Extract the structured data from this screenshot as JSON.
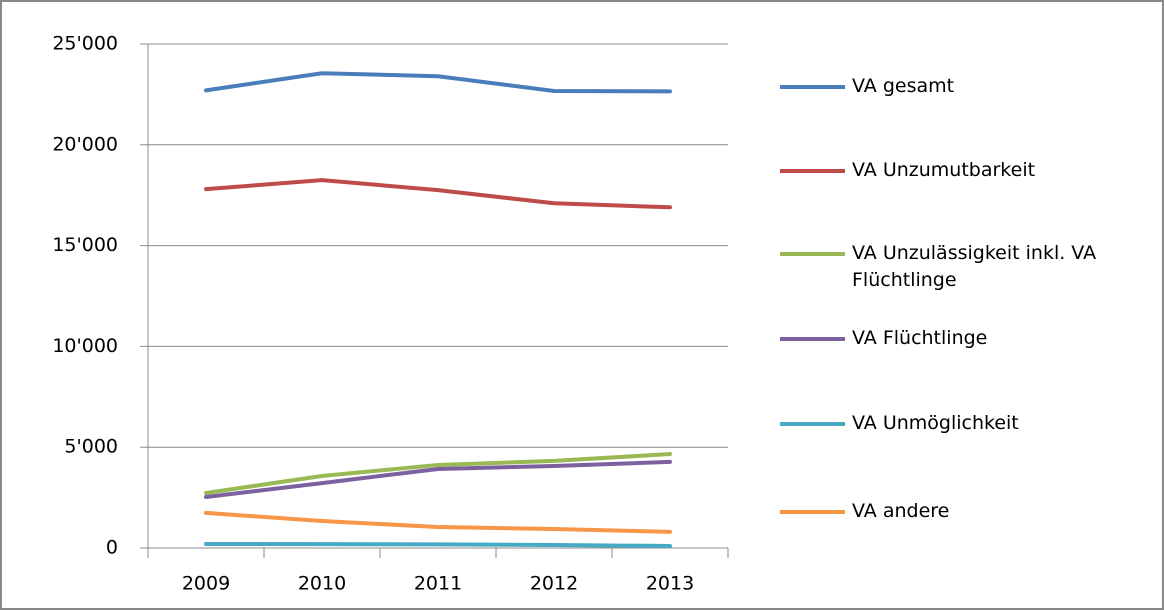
{
  "chart_data": {
    "type": "line",
    "categories": [
      "2009",
      "2010",
      "2011",
      "2012",
      "2013"
    ],
    "series": [
      {
        "name": "VA gesamt",
        "color": "#4a7ebb",
        "values": [
          22700,
          23550,
          23400,
          22670,
          22650
        ]
      },
      {
        "name": "VA Unzumutbarkeit",
        "color": "#be4b48",
        "values": [
          17800,
          18250,
          17750,
          17100,
          16900
        ]
      },
      {
        "name": "VA Unzulässigkeit inkl. VA Flüchtlinge",
        "color": "#98b954",
        "values": [
          2730,
          3570,
          4120,
          4320,
          4660
        ]
      },
      {
        "name": "VA Flüchtlinge",
        "color": "#7d60a0",
        "values": [
          2530,
          3220,
          3920,
          4070,
          4270
        ]
      },
      {
        "name": "VA Unmöglichkeit",
        "color": "#46aac5",
        "values": [
          200,
          190,
          180,
          150,
          100
        ]
      },
      {
        "name": "VA andere",
        "color": "#f79646",
        "values": [
          1740,
          1340,
          1040,
          940,
          800
        ]
      }
    ],
    "ylim": [
      0,
      25000
    ],
    "yticks": [
      0,
      {
        "value": 5000,
        "label": "5'000"
      },
      {
        "value": 10000,
        "label": "10'000"
      },
      {
        "value": 15000,
        "label": "15'000"
      },
      {
        "value": 20000,
        "label": "20'000"
      },
      {
        "value": 25000,
        "label": "25'000"
      }
    ],
    "grid": true,
    "legend": "right"
  }
}
